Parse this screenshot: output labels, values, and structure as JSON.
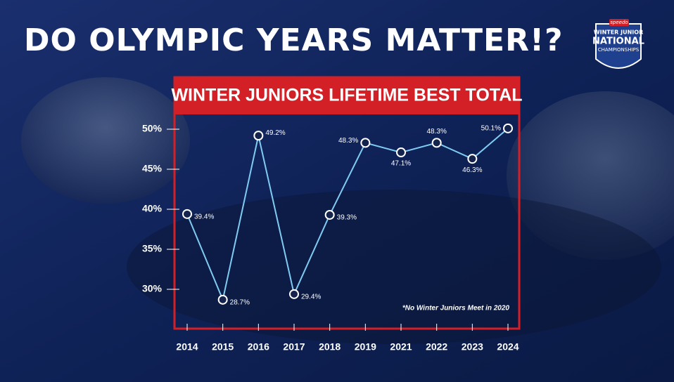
{
  "chart_data": {
    "type": "line",
    "title": "DO OLYMPIC YEARS MATTER!?",
    "subtitle": "WINTER JUNIORS LIFETIME BEST TOTAL",
    "annotation": "*No Winter Juniors Meet in 2020",
    "categories": [
      "2014",
      "2015",
      "2016",
      "2017",
      "2018",
      "2019",
      "2021",
      "2022",
      "2023",
      "2024"
    ],
    "series": [
      {
        "color": "#7fcbf2",
        "values": [
          39.4,
          28.7,
          49.2,
          29.4,
          39.3,
          48.3,
          47.1,
          48.3,
          46.3,
          50.1
        ],
        "value_labels": [
          "39.4%",
          "28.7%",
          "49.2%",
          "29.4%",
          "39.3%",
          "48.3%",
          "47.1%",
          "48.3%",
          "46.3%",
          "50.1%"
        ]
      }
    ],
    "ylim": [
      27,
      51
    ],
    "yticks": [
      {
        "value": 30,
        "label": "30%"
      },
      {
        "value": 35,
        "label": "35%"
      },
      {
        "value": 40,
        "label": "40%"
      },
      {
        "value": 45,
        "label": "45%"
      },
      {
        "value": 50,
        "label": "50%"
      }
    ],
    "grid": false
  },
  "logo": {
    "brand": "speedo",
    "line1": "WINTER JUNIOR",
    "line2": "NATIONAL",
    "line3": "CHAMPIONSHIPS"
  }
}
